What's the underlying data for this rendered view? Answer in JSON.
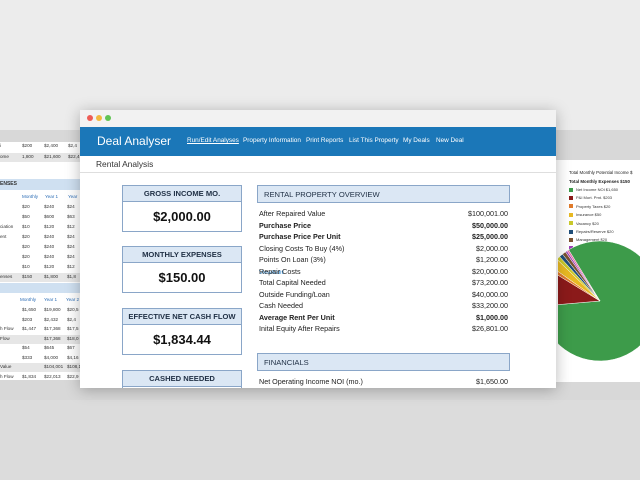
{
  "left_sheet": {
    "top_rows": [
      {
        "label": "i",
        "values": [
          "$200",
          "$2,400",
          "$2,4"
        ]
      },
      {
        "label": "ome",
        "values": [
          "1,800",
          "$21,600",
          "$22,4"
        ]
      }
    ],
    "section1_title": "ENSES",
    "section1_cols": [
      "Monthly",
      "Year 1",
      "Year"
    ],
    "section1_rows": [
      {
        "label": "",
        "values": [
          "$20",
          "$240",
          "$24"
        ]
      },
      {
        "label": "",
        "values": [
          "$50",
          "$600",
          "$63"
        ]
      },
      {
        "label": "ciation",
        "values": [
          "$10",
          "$120",
          "$12"
        ]
      },
      {
        "label": "ent",
        "values": [
          "$20",
          "$240",
          "$24"
        ]
      },
      {
        "label": "",
        "values": [
          "$20",
          "$240",
          "$24"
        ]
      },
      {
        "label": "",
        "values": [
          "$20",
          "$240",
          "$24"
        ]
      },
      {
        "label": "",
        "values": [
          "$10",
          "$120",
          "$12"
        ]
      },
      {
        "label": "enses",
        "values": [
          "$150",
          "$1,800",
          "$1,8"
        ]
      }
    ],
    "section2_cols": [
      "Monthly",
      "Year 1",
      "Year 2"
    ],
    "section2_rows": [
      {
        "label": "",
        "values": [
          "$1,650",
          "$19,800",
          "$20,5"
        ]
      },
      {
        "label": "",
        "values": [
          "$203",
          "$2,432",
          "$2,4"
        ]
      },
      {
        "label": "h Flow",
        "values": [
          "$1,447",
          "$17,368",
          "$17,5"
        ]
      },
      {
        "label": "Flow",
        "values": [
          "",
          "$17,368",
          "$18,0"
        ]
      },
      {
        "label": "",
        "values": [
          "$54",
          "$645",
          "$67"
        ]
      },
      {
        "label": "",
        "values": [
          "$333",
          "$4,000",
          "$4,16"
        ]
      },
      {
        "label": "Value",
        "values": [
          "",
          "$104,001",
          "$108,1"
        ]
      },
      {
        "label": "h Flow",
        "values": [
          "$1,834",
          "$22,013",
          "$22,9"
        ]
      }
    ]
  },
  "right_sheet": {
    "title": "Total Monthly Potential Income $",
    "subtitle": "Total Monthly Expenses $150",
    "legend": [
      {
        "label": "Net Income NOI $1,650",
        "color": "#3d9b4a"
      },
      {
        "label": "P&I Mort. Pmt. $203",
        "color": "#8b1a1a"
      },
      {
        "label": "Property Taxes $20",
        "color": "#e07b2b"
      },
      {
        "label": "Insurance $50",
        "color": "#e8b923"
      },
      {
        "label": "Vacancy $20",
        "color": "#c9c92b"
      },
      {
        "label": "Repairs/Reserve $20",
        "color": "#1f4e79"
      },
      {
        "label": "Management $20",
        "color": "#7a5230"
      },
      {
        "label": "HOA $10",
        "color": "#9b3fb5"
      },
      {
        "label": "Other Expenses $10",
        "color": "#e56fa8"
      }
    ]
  },
  "window": {
    "brand": "Deal Analyser",
    "nav": [
      "Run/Edit Analyses",
      "Property Information",
      "Print Reports",
      "List This Property",
      "My Deals",
      "New Deal"
    ],
    "page_title": "Rental Analysis"
  },
  "cards": [
    {
      "title": "GROSS INCOME MO.",
      "value": "$2,000.00"
    },
    {
      "title": "MONTHLY EXPENSES",
      "value": "$150.00"
    },
    {
      "title": "EFFECTIVE NET CASH FLOW",
      "value": "$1,834.44"
    },
    {
      "title": "CASHED NEEDED",
      "value": ""
    }
  ],
  "overview": {
    "title": "RENTAL PROPERTY OVERVIEW",
    "rows": [
      {
        "label": "After Repaired Value",
        "value": "$100,001.00",
        "bold": false
      },
      {
        "label": "Purchase Price",
        "value": "$50,000.00",
        "bold": true
      },
      {
        "label": "Purchase Price Per Unit",
        "value": "$25,000.00",
        "bold": true
      },
      {
        "label": "Closing Costs To Buy (4%)",
        "value": "$2,000.00",
        "bold": false
      },
      {
        "label": "Points On Loan (3%)",
        "value": "$1,200.00",
        "bold": false
      },
      {
        "label": "Repair Costs",
        "value": "$20,000.00",
        "bold": false,
        "link": "View/Edit"
      },
      {
        "label": "Total Capital Needed",
        "value": "$73,200.00",
        "bold": false
      },
      {
        "label": "Outside Funding/Loan",
        "value": "$40,000.00",
        "bold": false
      },
      {
        "label": "Cash Needed",
        "value": "$33,200.00",
        "bold": false
      },
      {
        "label": "Average Rent Per Unit",
        "value": "$1,000.00",
        "bold": true
      },
      {
        "label": "Inital Equity After Repairs",
        "value": "$26,801.00",
        "bold": false
      }
    ]
  },
  "financials": {
    "title": "FINANCIALS",
    "rows": [
      {
        "label": "Net Operating Income NOI (mo.)",
        "value": "$1,650.00"
      }
    ]
  }
}
